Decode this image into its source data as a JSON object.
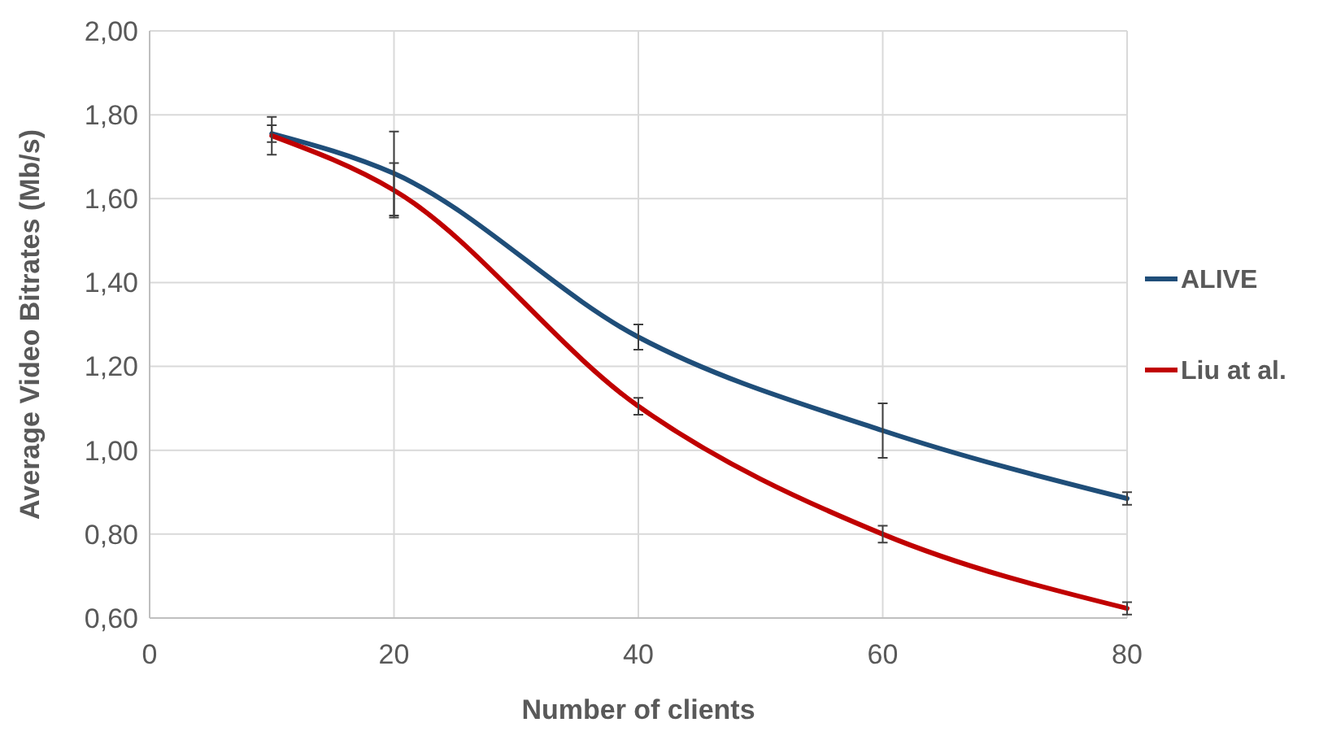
{
  "chart_data": {
    "type": "line",
    "xlabel": "Number of clients",
    "ylabel": "Average Video Bitrates (Mb/s)",
    "x": [
      10,
      20,
      40,
      60,
      80
    ],
    "series": [
      {
        "name": "ALIVE",
        "color": "#1f4e79",
        "values": [
          1.755,
          1.66,
          1.27,
          1.047,
          0.885
        ],
        "errors": [
          0.02,
          0.1,
          0.03,
          0.065,
          0.015
        ]
      },
      {
        "name": "Liu at al.",
        "color": "#c00000",
        "values": [
          1.75,
          1.62,
          1.105,
          0.8,
          0.623
        ],
        "errors": [
          0.045,
          0.065,
          0.02,
          0.02,
          0.015
        ]
      }
    ],
    "xlim": [
      0,
      80
    ],
    "xticks": [
      0,
      20,
      40,
      60,
      80
    ],
    "ylim": [
      0.6,
      2.0
    ],
    "yticks": [
      {
        "value": 0.6,
        "label": "0,60"
      },
      {
        "value": 0.8,
        "label": "0,80"
      },
      {
        "value": 1.0,
        "label": "1,00"
      },
      {
        "value": 1.2,
        "label": "1,20"
      },
      {
        "value": 1.4,
        "label": "1,40"
      },
      {
        "value": 1.6,
        "label": "1,60"
      },
      {
        "value": 1.8,
        "label": "1,80"
      },
      {
        "value": 2.0,
        "label": "2,00"
      }
    ],
    "grid": true,
    "legend": "right",
    "marker": "none",
    "line_style": "solid"
  }
}
